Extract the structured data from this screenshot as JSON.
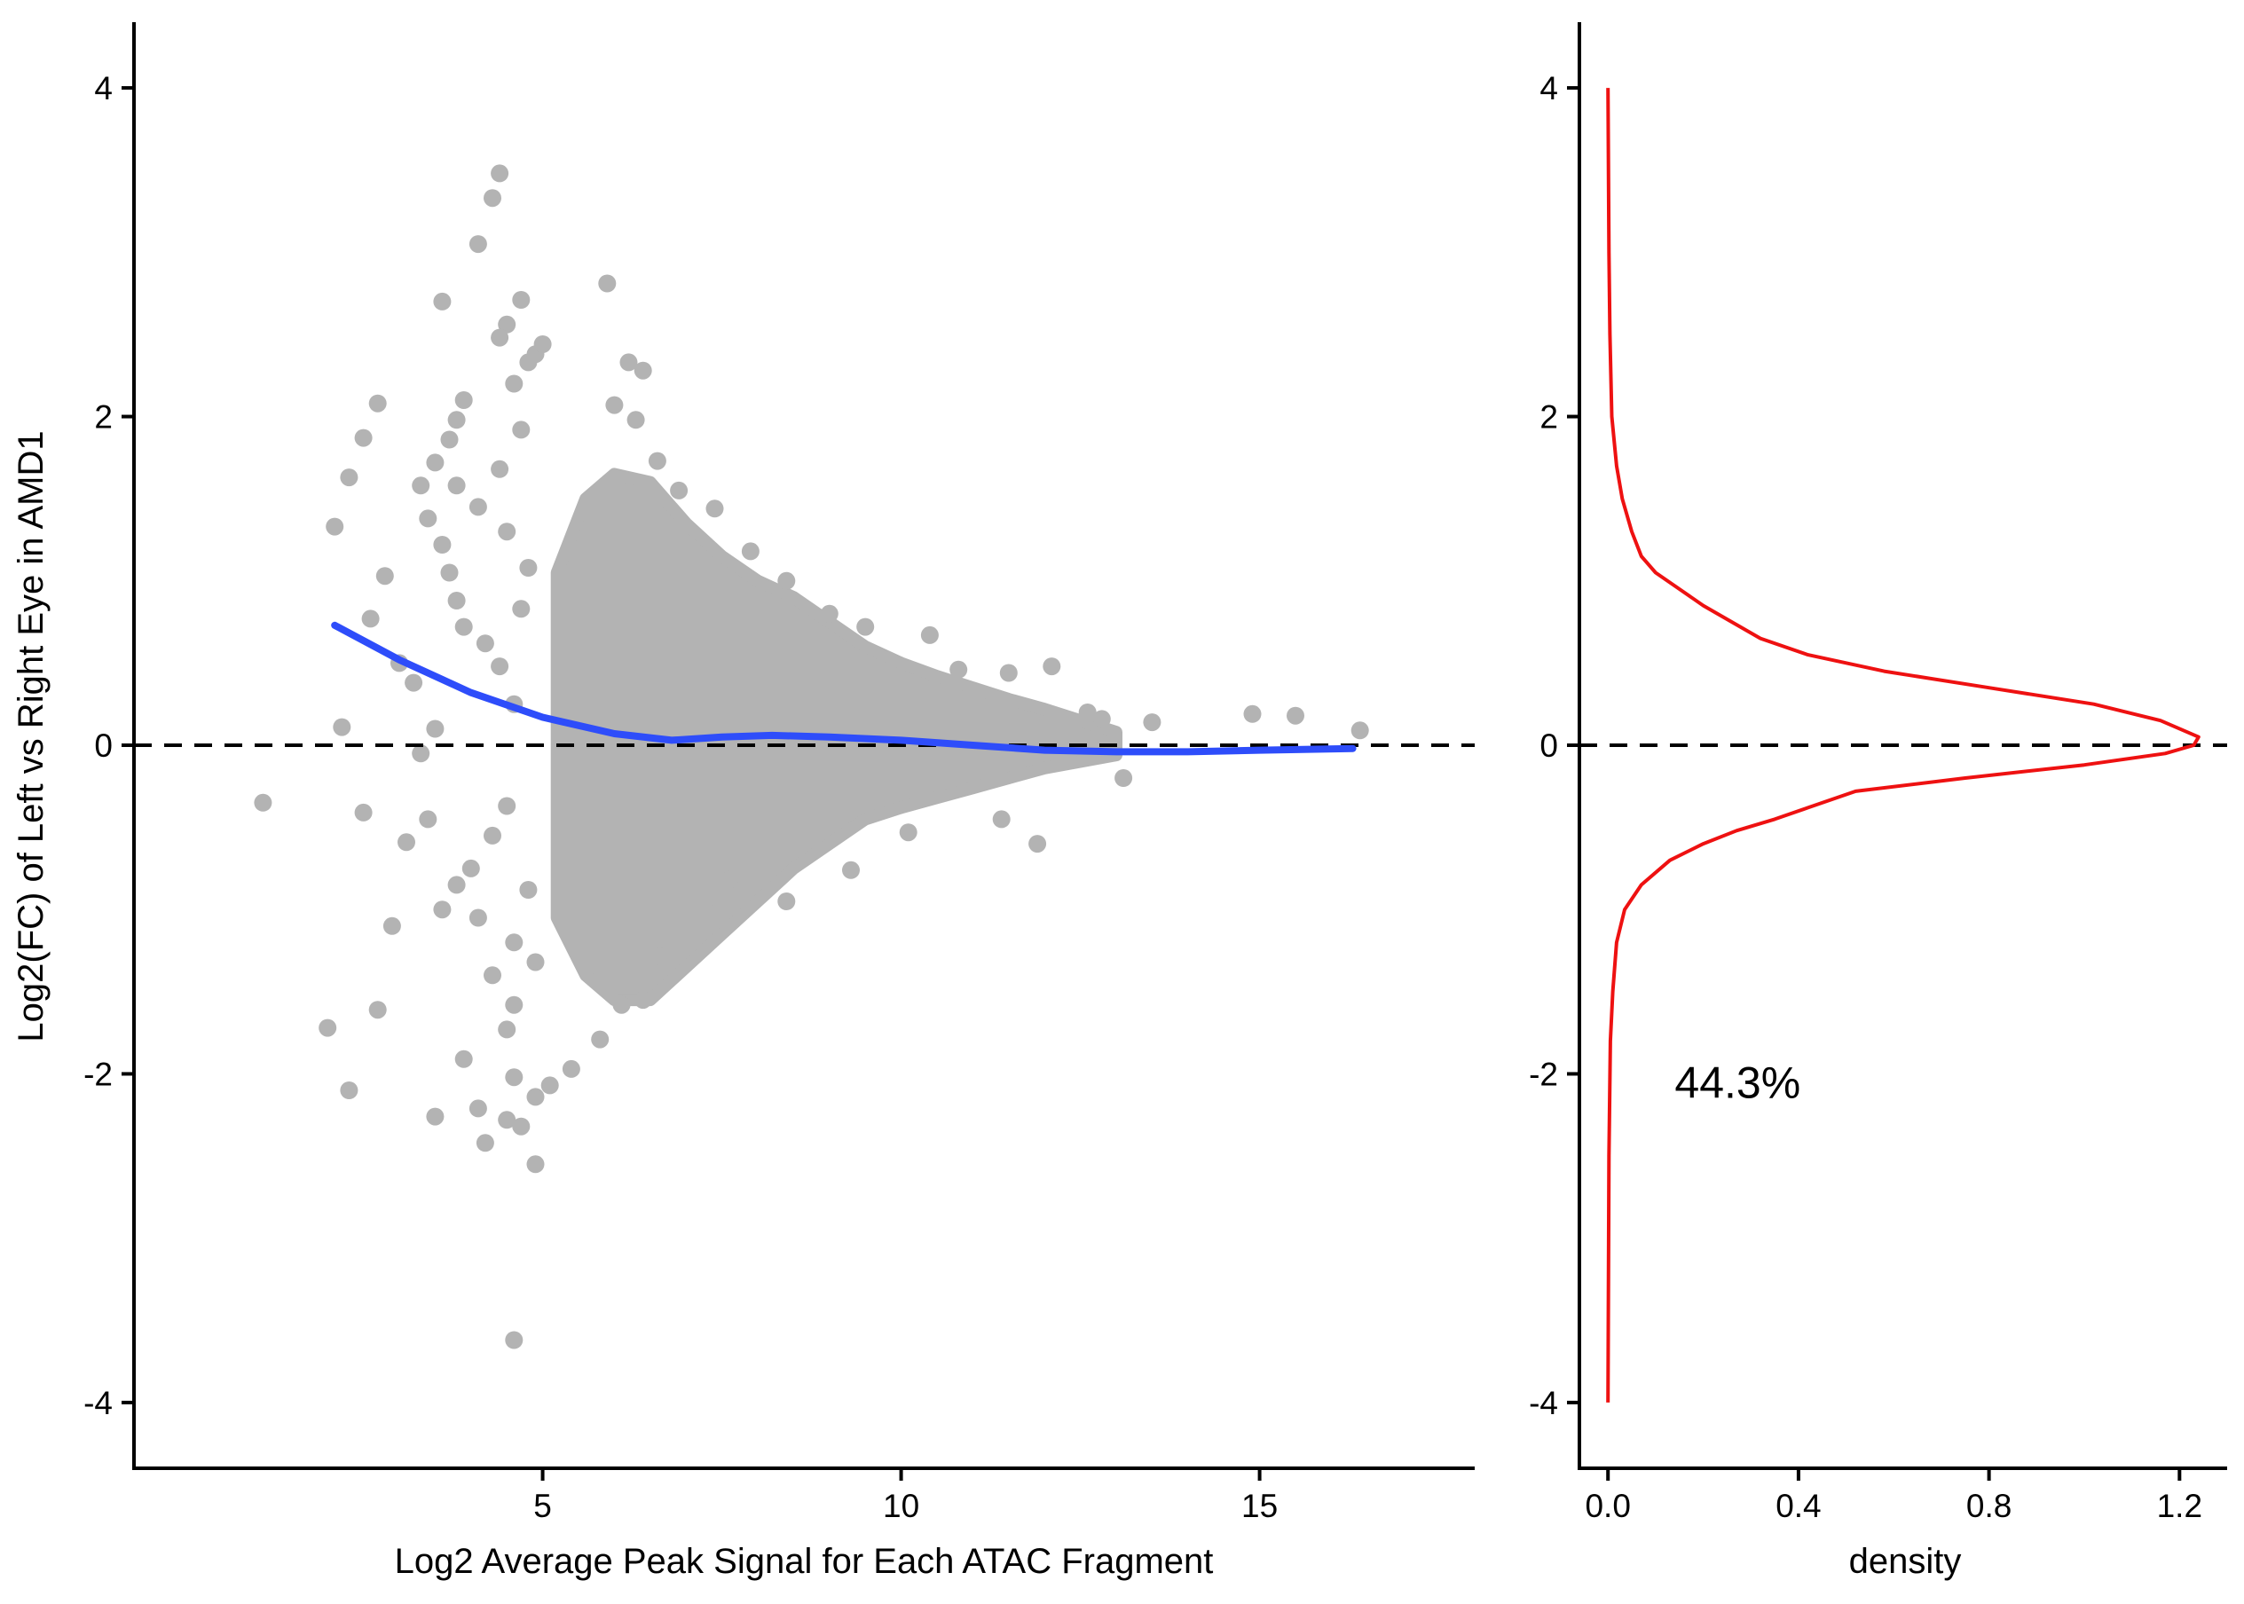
{
  "colors": {
    "points": "#b3b3b3",
    "smooth": "#2e4dfa",
    "density": "#ee1111",
    "axis": "#000000",
    "reference": "#000000"
  },
  "chart_data": [
    {
      "type": "scatter",
      "title": "",
      "xlabel": "Log2 Average Peak Signal for Each ATAC Fragment",
      "ylabel": "Log2(FC) of Left vs Right Eye in  AMD1",
      "xlim": [
        -0.7,
        18.0
      ],
      "ylim": [
        -4.4,
        4.4
      ],
      "x_ticks": [
        5,
        10,
        15
      ],
      "y_ticks": [
        -4,
        -2,
        0,
        2,
        4
      ],
      "x_tick_labels": [
        "5",
        "10",
        "15"
      ],
      "y_tick_labels": [
        "-4",
        "-2",
        "0",
        "2",
        "4"
      ],
      "grid": false,
      "legend": "none",
      "reference_line": {
        "axis": "y",
        "value": 0,
        "style": "dashed"
      },
      "cloud": {
        "description_x_range": [
          5.0,
          13.2
        ],
        "envelope": [
          {
            "x": 5.2,
            "upper": 1.05,
            "lower": -1.05
          },
          {
            "x": 5.6,
            "upper": 1.5,
            "lower": -1.4
          },
          {
            "x": 6.0,
            "upper": 1.65,
            "lower": -1.55
          },
          {
            "x": 6.5,
            "upper": 1.6,
            "lower": -1.55
          },
          {
            "x": 7.0,
            "upper": 1.35,
            "lower": -1.35
          },
          {
            "x": 7.5,
            "upper": 1.15,
            "lower": -1.15
          },
          {
            "x": 8.0,
            "upper": 1.0,
            "lower": -0.95
          },
          {
            "x": 8.5,
            "upper": 0.9,
            "lower": -0.75
          },
          {
            "x": 9.0,
            "upper": 0.75,
            "lower": -0.6
          },
          {
            "x": 9.5,
            "upper": 0.6,
            "lower": -0.45
          },
          {
            "x": 10.0,
            "upper": 0.5,
            "lower": -0.38
          },
          {
            "x": 10.5,
            "upper": 0.42,
            "lower": -0.32
          },
          {
            "x": 11.0,
            "upper": 0.35,
            "lower": -0.26
          },
          {
            "x": 11.5,
            "upper": 0.28,
            "lower": -0.2
          },
          {
            "x": 12.0,
            "upper": 0.22,
            "lower": -0.14
          },
          {
            "x": 12.5,
            "upper": 0.15,
            "lower": -0.1
          },
          {
            "x": 13.0,
            "upper": 0.08,
            "lower": -0.06
          }
        ]
      },
      "points": [
        {
          "x": 1.1,
          "y": -0.35
        },
        {
          "x": 2.1,
          "y": 1.33
        },
        {
          "x": 2.3,
          "y": 1.63
        },
        {
          "x": 2.5,
          "y": 1.87
        },
        {
          "x": 2.7,
          "y": 2.08
        },
        {
          "x": 2.2,
          "y": 0.11
        },
        {
          "x": 2.5,
          "y": -0.41
        },
        {
          "x": 2.6,
          "y": 0.77
        },
        {
          "x": 2.8,
          "y": 1.03
        },
        {
          "x": 3.0,
          "y": 0.5
        },
        {
          "x": 3.2,
          "y": 0.38
        },
        {
          "x": 2.0,
          "y": -1.72
        },
        {
          "x": 2.3,
          "y": -2.1
        },
        {
          "x": 2.7,
          "y": -1.61
        },
        {
          "x": 2.9,
          "y": -1.1
        },
        {
          "x": 3.1,
          "y": -0.59
        },
        {
          "x": 3.4,
          "y": -0.45
        },
        {
          "x": 3.6,
          "y": -1.0
        },
        {
          "x": 3.3,
          "y": 1.58
        },
        {
          "x": 3.5,
          "y": 1.72
        },
        {
          "x": 3.4,
          "y": 1.38
        },
        {
          "x": 3.7,
          "y": 1.86
        },
        {
          "x": 3.8,
          "y": 1.98
        },
        {
          "x": 3.9,
          "y": 2.1
        },
        {
          "x": 3.6,
          "y": 1.22
        },
        {
          "x": 3.7,
          "y": 1.05
        },
        {
          "x": 3.8,
          "y": 0.88
        },
        {
          "x": 3.9,
          "y": 0.72
        },
        {
          "x": 3.6,
          "y": 2.7
        },
        {
          "x": 4.1,
          "y": 3.05
        },
        {
          "x": 4.3,
          "y": 3.33
        },
        {
          "x": 4.4,
          "y": 3.48
        },
        {
          "x": 4.5,
          "y": 2.56
        },
        {
          "x": 4.4,
          "y": 2.48
        },
        {
          "x": 4.7,
          "y": 2.71
        },
        {
          "x": 4.8,
          "y": 2.33
        },
        {
          "x": 4.9,
          "y": 2.38
        },
        {
          "x": 4.6,
          "y": 2.2
        },
        {
          "x": 5.0,
          "y": 2.44
        },
        {
          "x": 5.9,
          "y": 2.81
        },
        {
          "x": 6.2,
          "y": 2.33
        },
        {
          "x": 6.4,
          "y": 2.28
        },
        {
          "x": 6.0,
          "y": 2.07
        },
        {
          "x": 6.3,
          "y": 1.98
        },
        {
          "x": 6.6,
          "y": 1.73
        },
        {
          "x": 6.9,
          "y": 1.55
        },
        {
          "x": 7.4,
          "y": 1.44
        },
        {
          "x": 7.9,
          "y": 1.18
        },
        {
          "x": 8.4,
          "y": 1.0
        },
        {
          "x": 9.0,
          "y": 0.8
        },
        {
          "x": 9.5,
          "y": 0.72
        },
        {
          "x": 10.4,
          "y": 0.67
        },
        {
          "x": 10.8,
          "y": 0.46
        },
        {
          "x": 11.5,
          "y": 0.44
        },
        {
          "x": 12.1,
          "y": 0.48
        },
        {
          "x": 12.6,
          "y": 0.2
        },
        {
          "x": 12.8,
          "y": 0.16
        },
        {
          "x": 13.5,
          "y": 0.14
        },
        {
          "x": 14.9,
          "y": 0.19
        },
        {
          "x": 15.5,
          "y": 0.18
        },
        {
          "x": 16.4,
          "y": 0.09
        },
        {
          "x": 13.1,
          "y": -0.2
        },
        {
          "x": 11.4,
          "y": -0.45
        },
        {
          "x": 11.9,
          "y": -0.6
        },
        {
          "x": 10.1,
          "y": -0.53
        },
        {
          "x": 9.3,
          "y": -0.76
        },
        {
          "x": 8.4,
          "y": -0.95
        },
        {
          "x": 7.3,
          "y": -1.02
        },
        {
          "x": 7.6,
          "y": -0.82
        },
        {
          "x": 6.6,
          "y": -1.28
        },
        {
          "x": 6.1,
          "y": -1.58
        },
        {
          "x": 6.4,
          "y": -1.55
        },
        {
          "x": 5.8,
          "y": -1.79
        },
        {
          "x": 5.4,
          "y": -1.97
        },
        {
          "x": 5.1,
          "y": -2.07
        },
        {
          "x": 4.9,
          "y": -2.14
        },
        {
          "x": 4.6,
          "y": -2.02
        },
        {
          "x": 4.5,
          "y": -2.28
        },
        {
          "x": 4.7,
          "y": -2.32
        },
        {
          "x": 4.2,
          "y": -2.42
        },
        {
          "x": 4.9,
          "y": -2.55
        },
        {
          "x": 4.1,
          "y": -2.21
        },
        {
          "x": 3.5,
          "y": -2.26
        },
        {
          "x": 3.9,
          "y": -1.91
        },
        {
          "x": 4.5,
          "y": -1.73
        },
        {
          "x": 4.3,
          "y": -1.4
        },
        {
          "x": 4.6,
          "y": -1.2
        },
        {
          "x": 4.1,
          "y": -1.05
        },
        {
          "x": 4.0,
          "y": -0.75
        },
        {
          "x": 4.3,
          "y": -0.55
        },
        {
          "x": 4.5,
          "y": -0.37
        },
        {
          "x": 4.6,
          "y": 0.25
        },
        {
          "x": 4.4,
          "y": 0.48
        },
        {
          "x": 4.2,
          "y": 0.62
        },
        {
          "x": 4.5,
          "y": 1.3
        },
        {
          "x": 4.1,
          "y": 1.45
        },
        {
          "x": 4.4,
          "y": 1.68
        },
        {
          "x": 3.8,
          "y": 1.58
        },
        {
          "x": 4.7,
          "y": 1.92
        },
        {
          "x": 4.8,
          "y": 1.08
        },
        {
          "x": 4.7,
          "y": 0.83
        },
        {
          "x": 4.8,
          "y": -0.88
        },
        {
          "x": 4.9,
          "y": -1.32
        },
        {
          "x": 4.6,
          "y": -1.58
        },
        {
          "x": 4.6,
          "y": -3.62
        },
        {
          "x": 3.8,
          "y": -0.85
        },
        {
          "x": 3.3,
          "y": -0.05
        },
        {
          "x": 3.5,
          "y": 0.1
        }
      ],
      "smooth_line": {
        "x": [
          2.1,
          3.0,
          4.0,
          5.0,
          6.0,
          6.8,
          7.5,
          8.2,
          9.0,
          10.0,
          11.0,
          12.0,
          13.0,
          14.0,
          15.0,
          16.3
        ],
        "y": [
          0.73,
          0.52,
          0.32,
          0.17,
          0.07,
          0.03,
          0.05,
          0.06,
          0.05,
          0.03,
          0.0,
          -0.03,
          -0.04,
          -0.04,
          -0.03,
          -0.02
        ]
      }
    },
    {
      "type": "line",
      "title": "",
      "xlabel": "density",
      "ylabel": "",
      "xlim": [
        -0.06,
        1.3
      ],
      "ylim": [
        -4.4,
        4.4
      ],
      "x_ticks": [
        0.0,
        0.4,
        0.8,
        1.2
      ],
      "y_ticks": [
        -4,
        -2,
        0,
        2,
        4
      ],
      "x_tick_labels": [
        "0.0",
        "0.4",
        "0.8",
        "1.2"
      ],
      "y_tick_labels": [
        "-4",
        "-2",
        "0",
        "2",
        "4"
      ],
      "grid": false,
      "legend": "none",
      "reference_line": {
        "axis": "y",
        "value": 0,
        "style": "dashed"
      },
      "annotation": {
        "text": "44.3%",
        "x": 0.14,
        "y": -2.05
      },
      "series": [
        {
          "values": [
            {
              "y": 4.0,
              "d": 0.0
            },
            {
              "y": 3.0,
              "d": 0.002
            },
            {
              "y": 2.5,
              "d": 0.004
            },
            {
              "y": 2.0,
              "d": 0.008
            },
            {
              "y": 1.7,
              "d": 0.018
            },
            {
              "y": 1.5,
              "d": 0.03
            },
            {
              "y": 1.3,
              "d": 0.05
            },
            {
              "y": 1.15,
              "d": 0.07
            },
            {
              "y": 1.05,
              "d": 0.1
            },
            {
              "y": 0.95,
              "d": 0.15
            },
            {
              "y": 0.85,
              "d": 0.2
            },
            {
              "y": 0.75,
              "d": 0.26
            },
            {
              "y": 0.65,
              "d": 0.32
            },
            {
              "y": 0.55,
              "d": 0.42
            },
            {
              "y": 0.45,
              "d": 0.58
            },
            {
              "y": 0.35,
              "d": 0.8
            },
            {
              "y": 0.25,
              "d": 1.02
            },
            {
              "y": 0.15,
              "d": 1.16
            },
            {
              "y": 0.05,
              "d": 1.24
            },
            {
              "y": 0.0,
              "d": 1.23
            },
            {
              "y": -0.05,
              "d": 1.17
            },
            {
              "y": -0.12,
              "d": 1.0
            },
            {
              "y": -0.2,
              "d": 0.75
            },
            {
              "y": -0.28,
              "d": 0.52
            },
            {
              "y": -0.38,
              "d": 0.42
            },
            {
              "y": -0.45,
              "d": 0.35
            },
            {
              "y": -0.52,
              "d": 0.27
            },
            {
              "y": -0.6,
              "d": 0.2
            },
            {
              "y": -0.7,
              "d": 0.13
            },
            {
              "y": -0.85,
              "d": 0.07
            },
            {
              "y": -1.0,
              "d": 0.035
            },
            {
              "y": -1.2,
              "d": 0.018
            },
            {
              "y": -1.5,
              "d": 0.01
            },
            {
              "y": -1.8,
              "d": 0.005
            },
            {
              "y": -2.5,
              "d": 0.002
            },
            {
              "y": -4.0,
              "d": 0.0
            }
          ]
        }
      ]
    }
  ]
}
